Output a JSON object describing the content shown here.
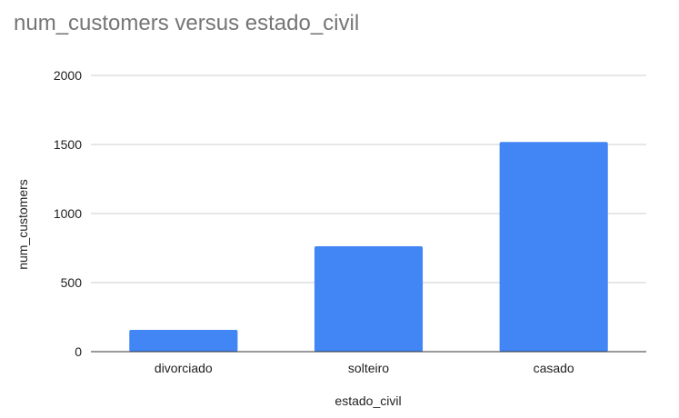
{
  "chart_data": {
    "type": "bar",
    "title": "num_customers versus estado_civil",
    "xlabel": "estado_civil",
    "ylabel": "num_customers",
    "categories": [
      "divorciado",
      "solteiro",
      "casado"
    ],
    "values": [
      158,
      763,
      1518
    ],
    "ylim": [
      0,
      2000
    ],
    "yticks": [
      "0",
      "500",
      "1000",
      "1500",
      "2000"
    ],
    "ytick_values": [
      0,
      500,
      1000,
      1500,
      2000
    ],
    "grid": true,
    "legend": "none",
    "colors": {
      "bar": "#4285f4",
      "grid": "#cccccc",
      "axis": "#333333",
      "title": "#757575",
      "text": "#222222"
    }
  }
}
